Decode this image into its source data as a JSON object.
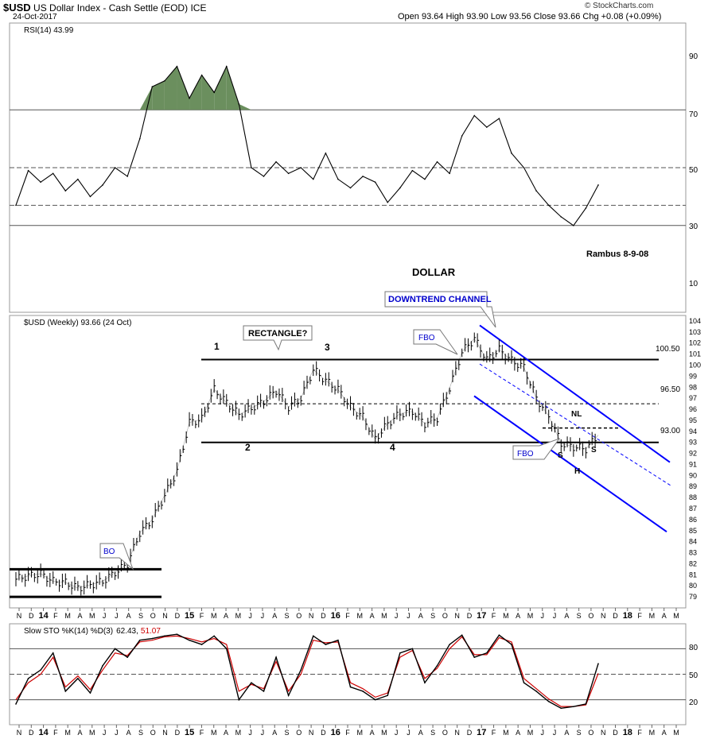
{
  "header": {
    "symbol": "$USD",
    "description": "US Dollar Index - Cash Settle (EOD)",
    "exchange": "ICE",
    "date": "24-Oct-2017",
    "ohlc": "Open 93.64  High 93.90  Low 93.56  Close 93.66  Chg +0.08 (+0.09%)",
    "brand": "© StockCharts.com"
  },
  "colors": {
    "price": "#000000",
    "channel": "#0000ff",
    "rsi_overbought_fill": "#6b8f5e",
    "rsi_oversold_fill": "#8b6b6b",
    "sto_d": "#cc0000",
    "callout_text": "#0000cc"
  },
  "rsi_panel": {
    "label": "RSI(14) 43.99",
    "ticks": [
      "90",
      "70",
      "50",
      "30",
      "10"
    ],
    "note": "Rambus  8-9-08",
    "title": "DOLLAR"
  },
  "price_panel": {
    "label": "$USD (Weekly) 93.66 (24 Oct)",
    "levels": [
      {
        "label": "100.50",
        "value": 100.5
      },
      {
        "label": "96.50",
        "value": 96.5
      },
      {
        "label": "93.00",
        "value": 93.0
      }
    ],
    "callouts": {
      "rectangle": "RECTANGLE?",
      "downtrend": "DOWNTREND CHANNEL",
      "fbo_top": "FBO",
      "fbo_bottom": "FBO",
      "bo": "BO"
    },
    "points": {
      "p1": "1",
      "p2": "2",
      "p3": "3",
      "p4": "4"
    },
    "pattern": {
      "nl": "NL",
      "ls": "S",
      "h": "H",
      "rs": "S"
    }
  },
  "sto_panel": {
    "label_prefix": "Slow STO %K(14) %D(3)",
    "k_value": "62.43",
    "d_value": "51.07",
    "ticks": [
      "80",
      "50",
      "20"
    ]
  },
  "x_axis": [
    "N",
    "D",
    "14",
    "F",
    "M",
    "A",
    "M",
    "J",
    "J",
    "A",
    "S",
    "O",
    "N",
    "D",
    "15",
    "F",
    "M",
    "A",
    "M",
    "J",
    "J",
    "A",
    "S",
    "O",
    "N",
    "D",
    "16",
    "F",
    "M",
    "A",
    "M",
    "J",
    "J",
    "A",
    "S",
    "O",
    "N",
    "D",
    "17",
    "F",
    "M",
    "A",
    "M",
    "J",
    "J",
    "A",
    "S",
    "O",
    "N",
    "D",
    "18",
    "F",
    "M",
    "A",
    "M"
  ],
  "chart_data": [
    {
      "type": "line",
      "title": "RSI(14) 43.99",
      "x": [
        "N-13",
        "D-13",
        "J-14",
        "F-14",
        "M-14",
        "A-14",
        "M-14",
        "J-14",
        "J-14",
        "A-14",
        "S-14",
        "O-14",
        "N-14",
        "D-14",
        "J-15",
        "F-15",
        "M-15",
        "A-15",
        "M-15",
        "J-15",
        "J-15",
        "A-15",
        "S-15",
        "O-15",
        "N-15",
        "D-15",
        "J-16",
        "F-16",
        "M-16",
        "A-16",
        "M-16",
        "J-16",
        "J-16",
        "A-16",
        "S-16",
        "O-16",
        "N-16",
        "D-16",
        "J-17",
        "F-17",
        "M-17",
        "A-17",
        "M-17",
        "J-17",
        "J-17",
        "A-17",
        "S-17",
        "O-17"
      ],
      "series": [
        {
          "name": "RSI(14)",
          "values": [
            37,
            49,
            45,
            48,
            42,
            46,
            40,
            44,
            50,
            47,
            60,
            78,
            80,
            85,
            74,
            82,
            76,
            85,
            72,
            50,
            47,
            52,
            48,
            50,
            46,
            55,
            46,
            43,
            47,
            45,
            38,
            43,
            49,
            46,
            52,
            48,
            61,
            68,
            64,
            67,
            55,
            50,
            42,
            37,
            33,
            30,
            36,
            44
          ]
        }
      ],
      "ylim": [
        0,
        100
      ],
      "reference_lines": [
        70,
        50,
        37,
        30
      ]
    },
    {
      "type": "line",
      "title": "$USD (Weekly) 93.66 (24 Oct)",
      "x": [
        "N-13",
        "D-13",
        "J-14",
        "F-14",
        "M-14",
        "A-14",
        "M-14",
        "J-14",
        "J-14",
        "A-14",
        "S-14",
        "O-14",
        "N-14",
        "D-14",
        "J-15",
        "F-15",
        "M-15",
        "A-15",
        "M-15",
        "J-15",
        "J-15",
        "A-15",
        "S-15",
        "O-15",
        "N-15",
        "D-15",
        "J-16",
        "F-16",
        "M-16",
        "A-16",
        "M-16",
        "J-16",
        "J-16",
        "A-16",
        "S-16",
        "O-16",
        "N-16",
        "D-16",
        "J-17",
        "F-17",
        "M-17",
        "A-17",
        "M-17",
        "J-17",
        "J-17",
        "A-17",
        "S-17",
        "O-17"
      ],
      "series": [
        {
          "name": "$USD",
          "values": [
            80.6,
            80.9,
            81.1,
            80.4,
            80.3,
            79.8,
            80.1,
            80.4,
            81.2,
            82.0,
            84.8,
            86.0,
            88.2,
            90.4,
            94.8,
            95.1,
            97.8,
            96.6,
            95.5,
            96.1,
            96.7,
            97.7,
            96.2,
            97.0,
            99.6,
            98.6,
            97.8,
            96.2,
            95.3,
            93.3,
            94.7,
            95.6,
            95.8,
            94.7,
            95.2,
            97.9,
            101.2,
            102.4,
            100.5,
            101.4,
            100.4,
            99.8,
            97.0,
            95.4,
            92.9,
            92.6,
            92.4,
            93.66
          ]
        }
      ],
      "ylim": [
        79,
        104
      ],
      "reference_lines": [
        100.5,
        96.5,
        93.0,
        81.5,
        79.0
      ]
    },
    {
      "type": "line",
      "title": "Slow STO %K(14) %D(3) 62.43, 51.07",
      "x": [
        "N-13",
        "D-13",
        "J-14",
        "F-14",
        "M-14",
        "A-14",
        "M-14",
        "J-14",
        "J-14",
        "A-14",
        "S-14",
        "O-14",
        "N-14",
        "D-14",
        "J-15",
        "F-15",
        "M-15",
        "A-15",
        "M-15",
        "J-15",
        "J-15",
        "A-15",
        "S-15",
        "O-15",
        "N-15",
        "D-15",
        "J-16",
        "F-16",
        "M-16",
        "A-16",
        "M-16",
        "J-16",
        "J-16",
        "A-16",
        "S-16",
        "O-16",
        "N-16",
        "D-16",
        "J-17",
        "F-17",
        "M-17",
        "A-17",
        "M-17",
        "J-17",
        "J-17",
        "A-17",
        "S-17",
        "O-17"
      ],
      "series": [
        {
          "name": "%K",
          "values": [
            15,
            45,
            55,
            75,
            30,
            45,
            28,
            60,
            80,
            70,
            90,
            92,
            95,
            97,
            90,
            85,
            95,
            80,
            20,
            40,
            30,
            70,
            25,
            55,
            95,
            85,
            90,
            35,
            30,
            20,
            25,
            75,
            80,
            40,
            60,
            85,
            96,
            70,
            75,
            96,
            85,
            40,
            30,
            18,
            10,
            12,
            15,
            62.43
          ]
        },
        {
          "name": "%D",
          "values": [
            20,
            40,
            50,
            70,
            35,
            48,
            32,
            55,
            75,
            72,
            88,
            90,
            94,
            95,
            92,
            88,
            92,
            85,
            30,
            38,
            33,
            65,
            30,
            50,
            90,
            87,
            88,
            40,
            33,
            23,
            28,
            70,
            78,
            45,
            57,
            80,
            94,
            73,
            73,
            93,
            88,
            45,
            33,
            21,
            12,
            12,
            14,
            51.07
          ]
        }
      ],
      "ylim": [
        0,
        100
      ],
      "reference_lines": [
        80,
        50,
        20
      ]
    }
  ]
}
